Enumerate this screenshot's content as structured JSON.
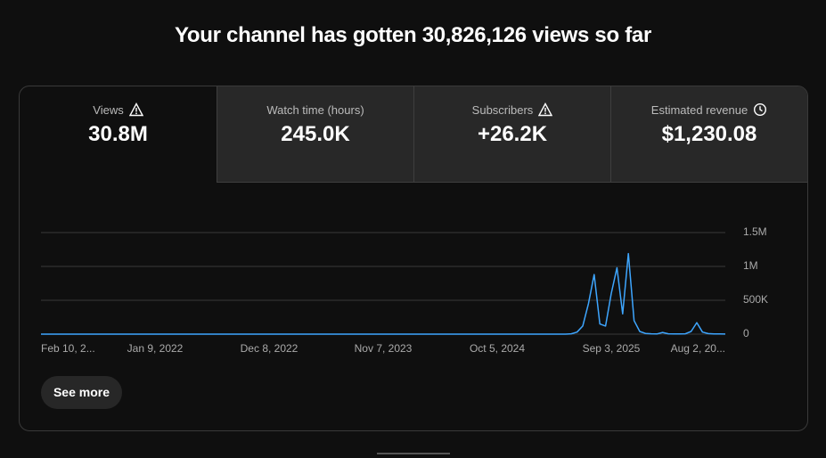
{
  "header": {
    "title": "Your channel has gotten 30,826,126 views so far"
  },
  "metrics": [
    {
      "label": "Views",
      "value": "30.8M"
    },
    {
      "label": "Watch time (hours)",
      "value": "245.0K"
    },
    {
      "label": "Subscribers",
      "value": "+26.2K"
    },
    {
      "label": "Estimated revenue",
      "value": "$1,230.08"
    }
  ],
  "chart_data": {
    "type": "line",
    "color": "#3ea6ff",
    "grid": true,
    "categories": [
      "Feb 10, 2...",
      null,
      null,
      null,
      null,
      null,
      null,
      null,
      null,
      null,
      null,
      null,
      null,
      null,
      null,
      null,
      null,
      null,
      null,
      null,
      "Jan 9, 2022",
      null,
      null,
      null,
      null,
      null,
      null,
      null,
      null,
      null,
      null,
      null,
      null,
      null,
      null,
      null,
      null,
      null,
      null,
      null,
      "Dec 8, 2022",
      null,
      null,
      null,
      null,
      null,
      null,
      null,
      null,
      null,
      null,
      null,
      null,
      null,
      null,
      null,
      null,
      null,
      null,
      null,
      "Nov 7, 2023",
      null,
      null,
      null,
      null,
      null,
      null,
      null,
      null,
      null,
      null,
      null,
      null,
      null,
      null,
      null,
      null,
      null,
      null,
      null,
      "Oct 5, 2024",
      null,
      null,
      null,
      null,
      null,
      null,
      null,
      null,
      null,
      null,
      null,
      null,
      null,
      null,
      null,
      null,
      null,
      null,
      null,
      "Sep 3, 2025",
      null,
      null,
      null,
      null,
      null,
      null,
      null,
      null,
      null,
      null,
      null,
      null,
      null,
      null,
      null,
      null,
      null,
      null,
      null,
      "Aug 2, 20..."
    ],
    "values": [
      0,
      0,
      0,
      0,
      0,
      0,
      0,
      0,
      0,
      0,
      0,
      0,
      0,
      0,
      0,
      0,
      0,
      0,
      0,
      0,
      0,
      0,
      0,
      0,
      0,
      0,
      0,
      0,
      0,
      0,
      0,
      0,
      0,
      0,
      0,
      0,
      0,
      0,
      0,
      0,
      0,
      0,
      0,
      0,
      0,
      0,
      0,
      0,
      0,
      0,
      0,
      0,
      0,
      0,
      0,
      0,
      0,
      0,
      0,
      0,
      0,
      0,
      0,
      0,
      0,
      0,
      0,
      0,
      0,
      0,
      0,
      0,
      0,
      0,
      0,
      0,
      0,
      0,
      0,
      0,
      0,
      0,
      0,
      0,
      0,
      0,
      0,
      0,
      0,
      0,
      0,
      0,
      0,
      5000,
      30000,
      120000,
      450000,
      880000,
      150000,
      120000,
      600000,
      980000,
      300000,
      1190000,
      200000,
      40000,
      10000,
      5000,
      3000,
      25000,
      5000,
      3000,
      2000,
      5000,
      40000,
      170000,
      30000,
      8000,
      3000,
      2000,
      1000
    ],
    "ylim": [
      0,
      1500000
    ],
    "yticks": [
      0,
      {
        "value": 500000,
        "label": "500K"
      },
      {
        "value": 1000000,
        "label": "1M"
      },
      {
        "value": 1500000,
        "label": "1.5M"
      }
    ]
  },
  "button": {
    "label": "See more"
  }
}
